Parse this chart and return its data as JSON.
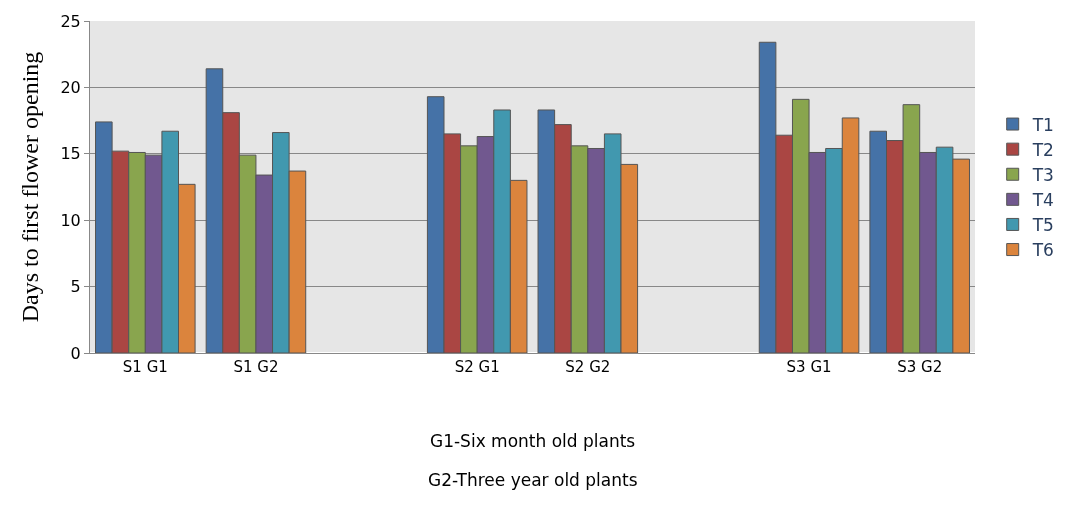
{
  "chart_data": {
    "type": "bar",
    "ylabel": "Days to first flower opening",
    "categories": [
      "S1 G1",
      "S1 G2",
      null,
      "S2 G1",
      "S2 G2",
      null,
      "S3 G1",
      "S3 G2"
    ],
    "series": [
      {
        "name": "T1",
        "color": "#4572a7",
        "values": [
          17.4,
          21.4,
          null,
          19.3,
          18.3,
          null,
          23.4,
          16.7
        ]
      },
      {
        "name": "T2",
        "color": "#aa4643",
        "values": [
          15.2,
          18.1,
          null,
          16.5,
          17.2,
          null,
          16.4,
          16.0
        ]
      },
      {
        "name": "T3",
        "color": "#89a54e",
        "values": [
          15.1,
          14.9,
          null,
          15.6,
          15.6,
          null,
          19.1,
          18.7
        ]
      },
      {
        "name": "T4",
        "color": "#71588f",
        "values": [
          14.9,
          13.4,
          null,
          16.3,
          15.4,
          null,
          15.1,
          15.1
        ]
      },
      {
        "name": "T5",
        "color": "#4198af",
        "values": [
          16.7,
          16.6,
          null,
          18.3,
          16.5,
          null,
          15.4,
          15.5
        ]
      },
      {
        "name": "T6",
        "color": "#db843d",
        "values": [
          12.7,
          13.7,
          null,
          13.0,
          14.2,
          null,
          17.7,
          14.6
        ]
      }
    ],
    "ylim": [
      0,
      25
    ],
    "yticks": [
      0,
      5,
      10,
      15,
      20,
      25
    ],
    "grid": "y",
    "legend": "right",
    "annotations": [
      "G1-Six month old plants",
      "G2-Three year old plants"
    ]
  }
}
